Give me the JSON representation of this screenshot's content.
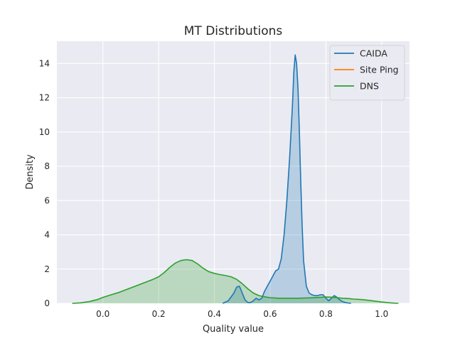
{
  "chart_data": {
    "type": "area",
    "title": "MT Distributions",
    "xlabel": "Quality value",
    "ylabel": "Density",
    "xlim": [
      -0.165,
      1.1
    ],
    "ylim": [
      0,
      15.3
    ],
    "xticks": [
      0.0,
      0.2,
      0.4,
      0.6,
      0.8,
      1.0
    ],
    "yticks": [
      0,
      2,
      4,
      6,
      8,
      10,
      12,
      14
    ],
    "xtick_labels": [
      "0.0",
      "0.2",
      "0.4",
      "0.6",
      "0.8",
      "1.0"
    ],
    "ytick_labels": [
      "0",
      "2",
      "4",
      "6",
      "8",
      "10",
      "12",
      "14"
    ],
    "grid": true,
    "legend_position": "top-right",
    "series": [
      {
        "name": "CAIDA",
        "color": "#1f77b4",
        "x": [
          0.43,
          0.45,
          0.47,
          0.48,
          0.49,
          0.5,
          0.51,
          0.52,
          0.53,
          0.54,
          0.55,
          0.56,
          0.57,
          0.58,
          0.59,
          0.6,
          0.61,
          0.62,
          0.63,
          0.64,
          0.65,
          0.66,
          0.67,
          0.68,
          0.685,
          0.69,
          0.695,
          0.7,
          0.705,
          0.71,
          0.715,
          0.72,
          0.73,
          0.74,
          0.75,
          0.76,
          0.77,
          0.78,
          0.79,
          0.8,
          0.81,
          0.82,
          0.83,
          0.84,
          0.85,
          0.86,
          0.87,
          0.88,
          0.89
        ],
        "y": [
          0.0,
          0.15,
          0.6,
          0.95,
          1.0,
          0.6,
          0.2,
          0.05,
          0.05,
          0.15,
          0.3,
          0.2,
          0.3,
          0.7,
          1.0,
          1.3,
          1.6,
          1.9,
          2.0,
          2.6,
          4.0,
          6.0,
          8.5,
          11.5,
          13.5,
          14.5,
          14.0,
          12.5,
          10.0,
          7.0,
          4.5,
          2.5,
          1.0,
          0.6,
          0.5,
          0.45,
          0.45,
          0.5,
          0.5,
          0.3,
          0.15,
          0.3,
          0.45,
          0.35,
          0.2,
          0.1,
          0.05,
          0.02,
          0.0
        ]
      },
      {
        "name": "Site Ping",
        "color": "#ff7f0e",
        "x": [],
        "y": []
      },
      {
        "name": "DNS",
        "color": "#2ca02c",
        "x": [
          -0.11,
          -0.08,
          -0.05,
          -0.02,
          0.0,
          0.03,
          0.06,
          0.1,
          0.14,
          0.18,
          0.2,
          0.22,
          0.24,
          0.26,
          0.28,
          0.3,
          0.32,
          0.34,
          0.36,
          0.38,
          0.4,
          0.42,
          0.44,
          0.46,
          0.48,
          0.5,
          0.52,
          0.54,
          0.56,
          0.58,
          0.6,
          0.63,
          0.66,
          0.7,
          0.74,
          0.78,
          0.8,
          0.82,
          0.84,
          0.86,
          0.88,
          0.9,
          0.93,
          0.96,
          1.0,
          1.03,
          1.06
        ],
        "y": [
          0.0,
          0.03,
          0.1,
          0.22,
          0.35,
          0.5,
          0.65,
          0.9,
          1.15,
          1.4,
          1.55,
          1.8,
          2.1,
          2.35,
          2.5,
          2.55,
          2.5,
          2.3,
          2.05,
          1.85,
          1.75,
          1.68,
          1.62,
          1.55,
          1.4,
          1.15,
          0.85,
          0.6,
          0.45,
          0.38,
          0.33,
          0.3,
          0.3,
          0.3,
          0.32,
          0.35,
          0.37,
          0.36,
          0.33,
          0.3,
          0.28,
          0.25,
          0.22,
          0.16,
          0.08,
          0.03,
          0.0
        ]
      }
    ]
  }
}
